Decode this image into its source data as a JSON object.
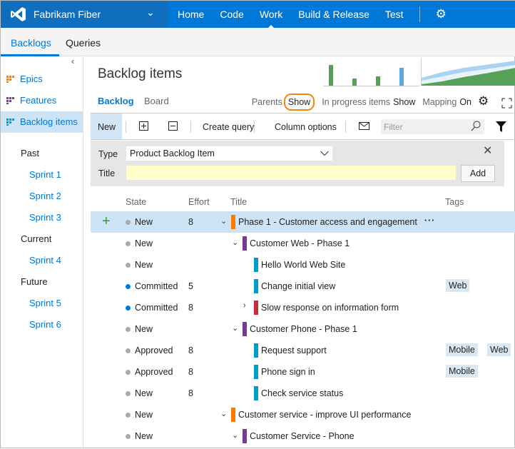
{
  "header": {
    "project": "Fabrikam Fiber",
    "nav": [
      "Home",
      "Code",
      "Work",
      "Build & Release",
      "Test"
    ],
    "active": "Work"
  },
  "subnav": {
    "tabs": [
      "Backlogs",
      "Queries"
    ]
  },
  "sidebar": {
    "levels": [
      {
        "label": "Epics",
        "color": "#ff7b00"
      },
      {
        "label": "Features",
        "color": "#773b93"
      },
      {
        "label": "Backlog items",
        "color": "#009ccc"
      }
    ],
    "groups": [
      {
        "label": "Past",
        "sprints": [
          "Sprint 1",
          "Sprint 2",
          "Sprint 3"
        ]
      },
      {
        "label": "Current",
        "sprints": [
          "Sprint 4"
        ]
      },
      {
        "label": "Future",
        "sprints": [
          "Sprint 5",
          "Sprint 6"
        ]
      }
    ]
  },
  "page": {
    "title": "Backlog items",
    "pivots": [
      "Backlog",
      "Board"
    ],
    "options": {
      "parents_label": "Parents",
      "parents_value": "Show",
      "inprogress_label": "In progress items",
      "inprogress_value": "Show",
      "mapping_label": "Mapping",
      "mapping_value": "On"
    }
  },
  "toolbar": {
    "new": "New",
    "create_query": "Create query",
    "column_options": "Column options",
    "filter_placeholder": "Filter"
  },
  "add_panel": {
    "type_label": "Type",
    "type_value": "Product Backlog Item",
    "title_label": "Title",
    "title_value": "",
    "add": "Add"
  },
  "columns": [
    "State",
    "Effort",
    "Title",
    "Tags"
  ],
  "rows": [
    {
      "state": "New",
      "effort": "8",
      "title": "Phase 1 - Customer access and engagement",
      "level": 1,
      "type": "epic",
      "expand": "down",
      "selected": true,
      "tags": []
    },
    {
      "state": "New",
      "effort": "",
      "title": "Customer Web - Phase 1",
      "level": 2,
      "type": "feature",
      "expand": "down",
      "tags": []
    },
    {
      "state": "New",
      "effort": "",
      "title": "Hello World Web Site",
      "level": 3,
      "type": "pbi",
      "tags": []
    },
    {
      "state": "Committed",
      "effort": "5",
      "title": "Change initial view",
      "level": 3,
      "type": "pbi",
      "tags": [
        "Web"
      ]
    },
    {
      "state": "Committed",
      "effort": "8",
      "title": "Slow response on information form",
      "level": 3,
      "type": "bug",
      "expand": "right",
      "tags": []
    },
    {
      "state": "New",
      "effort": "",
      "title": "Customer Phone - Phase 1",
      "level": 2,
      "type": "feature",
      "expand": "down",
      "tags": []
    },
    {
      "state": "Approved",
      "effort": "8",
      "title": "Request support",
      "level": 3,
      "type": "pbi",
      "tags": [
        "Mobile",
        "Web"
      ]
    },
    {
      "state": "Approved",
      "effort": "8",
      "title": "Phone sign in",
      "level": 3,
      "type": "pbi",
      "tags": [
        "Mobile"
      ]
    },
    {
      "state": "New",
      "effort": "8",
      "title": "Check service status",
      "level": 3,
      "type": "pbi",
      "tags": []
    },
    {
      "state": "New",
      "effort": "",
      "title": "Customer service - improve UI performance",
      "level": 1,
      "type": "epic",
      "expand": "down",
      "tags": []
    },
    {
      "state": "New",
      "effort": "",
      "title": "Customer Service - Phone",
      "level": 2,
      "type": "feature",
      "expand": "down",
      "tags": []
    }
  ],
  "colors": {
    "epic": "#ff7b00",
    "feature": "#773b93",
    "pbi": "#009ccc",
    "bug": "#cc293d",
    "New": "#aaaaaa",
    "Committed": "#0078d7",
    "Approved": "#aaaaaa",
    "accent": "#0078d7",
    "highlight": "#f7860e"
  }
}
